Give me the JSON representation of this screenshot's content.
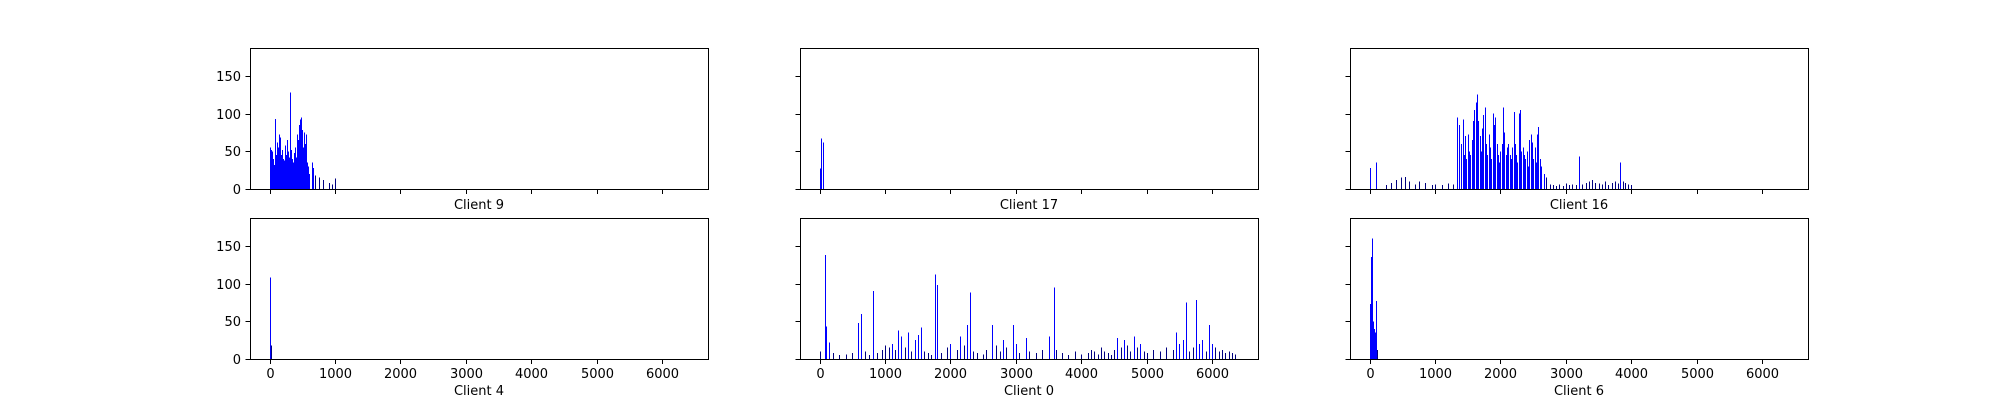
{
  "chart_data": {
    "type": "bar",
    "layout": {
      "rows": 2,
      "cols": 3,
      "sharex": true,
      "sharey": true
    },
    "xlim": [
      -300,
      6700
    ],
    "ylim": [
      0,
      187
    ],
    "xticks": [
      0,
      1000,
      2000,
      3000,
      4000,
      5000,
      6000
    ],
    "yticks": [
      0,
      50,
      100,
      150
    ],
    "colors": {
      "bar": "#0000ff",
      "dense": "#000080"
    },
    "panels": [
      {
        "title": "Client 9",
        "bars": [
          [
            5,
            55
          ],
          [
            20,
            52
          ],
          [
            35,
            50
          ],
          [
            50,
            40
          ],
          [
            62,
            32
          ],
          [
            75,
            93
          ],
          [
            90,
            45
          ],
          [
            105,
            38
          ],
          [
            120,
            62
          ],
          [
            135,
            55
          ],
          [
            150,
            72
          ],
          [
            165,
            68
          ],
          [
            180,
            45
          ],
          [
            195,
            52
          ],
          [
            210,
            40
          ],
          [
            225,
            38
          ],
          [
            240,
            58
          ],
          [
            255,
            45
          ],
          [
            270,
            65
          ],
          [
            285,
            50
          ],
          [
            300,
            42
          ],
          [
            318,
            128
          ],
          [
            330,
            52
          ],
          [
            345,
            40
          ],
          [
            360,
            35
          ],
          [
            375,
            48
          ],
          [
            390,
            55
          ],
          [
            405,
            42
          ],
          [
            420,
            72
          ],
          [
            435,
            65
          ],
          [
            450,
            85
          ],
          [
            465,
            92
          ],
          [
            478,
            95
          ],
          [
            490,
            78
          ],
          [
            505,
            55
          ],
          [
            520,
            75
          ],
          [
            535,
            60
          ],
          [
            550,
            72
          ],
          [
            565,
            35
          ],
          [
            580,
            30
          ],
          [
            600,
            20
          ],
          [
            640,
            35
          ],
          [
            670,
            28
          ],
          [
            700,
            18
          ],
          [
            760,
            15
          ],
          [
            820,
            12
          ],
          [
            900,
            8
          ],
          [
            950,
            6
          ],
          [
            1000,
            14
          ]
        ]
      },
      {
        "title": "Client 17",
        "bars": [
          [
            0,
            27
          ],
          [
            15,
            67
          ],
          [
            45,
            62
          ]
        ]
      },
      {
        "title": "Client 16",
        "bars": [
          [
            0,
            28
          ],
          [
            100,
            35
          ],
          [
            250,
            5
          ],
          [
            320,
            8
          ],
          [
            400,
            12
          ],
          [
            480,
            15
          ],
          [
            540,
            16
          ],
          [
            600,
            10
          ],
          [
            700,
            6
          ],
          [
            760,
            10
          ],
          [
            850,
            8
          ],
          [
            950,
            5
          ],
          [
            1000,
            6
          ],
          [
            1100,
            5
          ],
          [
            1200,
            7
          ],
          [
            1280,
            6
          ],
          [
            1330,
            95
          ],
          [
            1360,
            85
          ],
          [
            1390,
            60
          ],
          [
            1420,
            92
          ],
          [
            1440,
            45
          ],
          [
            1460,
            70
          ],
          [
            1480,
            40
          ],
          [
            1500,
            72
          ],
          [
            1520,
            50
          ],
          [
            1540,
            45
          ],
          [
            1560,
            65
          ],
          [
            1580,
            90
          ],
          [
            1600,
            105
          ],
          [
            1620,
            115
          ],
          [
            1640,
            125
          ],
          [
            1660,
            90
          ],
          [
            1680,
            70
          ],
          [
            1700,
            50
          ],
          [
            1720,
            80
          ],
          [
            1740,
            98
          ],
          [
            1760,
            108
          ],
          [
            1780,
            60
          ],
          [
            1800,
            45
          ],
          [
            1820,
            72
          ],
          [
            1840,
            55
          ],
          [
            1860,
            40
          ],
          [
            1880,
            100
          ],
          [
            1900,
            85
          ],
          [
            1920,
            95
          ],
          [
            1940,
            60
          ],
          [
            1960,
            45
          ],
          [
            1980,
            35
          ],
          [
            2000,
            50
          ],
          [
            2020,
            60
          ],
          [
            2040,
            108
          ],
          [
            2060,
            75
          ],
          [
            2080,
            45
          ],
          [
            2100,
            55
          ],
          [
            2120,
            60
          ],
          [
            2140,
            45
          ],
          [
            2160,
            40
          ],
          [
            2180,
            55
          ],
          [
            2200,
            102
          ],
          [
            2220,
            60
          ],
          [
            2240,
            45
          ],
          [
            2260,
            35
          ],
          [
            2280,
            100
          ],
          [
            2300,
            105
          ],
          [
            2320,
            50
          ],
          [
            2340,
            55
          ],
          [
            2360,
            45
          ],
          [
            2380,
            40
          ],
          [
            2400,
            50
          ],
          [
            2420,
            30
          ],
          [
            2440,
            65
          ],
          [
            2460,
            72
          ],
          [
            2480,
            62
          ],
          [
            2500,
            40
          ],
          [
            2520,
            55
          ],
          [
            2540,
            35
          ],
          [
            2560,
            72
          ],
          [
            2580,
            82
          ],
          [
            2600,
            40
          ],
          [
            2620,
            30
          ],
          [
            2660,
            20
          ],
          [
            2700,
            15
          ],
          [
            2750,
            6
          ],
          [
            2800,
            5
          ],
          [
            2850,
            4
          ],
          [
            2900,
            6
          ],
          [
            2950,
            4
          ],
          [
            3000,
            7
          ],
          [
            3050,
            5
          ],
          [
            3100,
            6
          ],
          [
            3150,
            5
          ],
          [
            3200,
            43
          ],
          [
            3250,
            6
          ],
          [
            3300,
            8
          ],
          [
            3350,
            10
          ],
          [
            3400,
            12
          ],
          [
            3450,
            8
          ],
          [
            3500,
            7
          ],
          [
            3550,
            6
          ],
          [
            3600,
            10
          ],
          [
            3650,
            5
          ],
          [
            3700,
            8
          ],
          [
            3750,
            10
          ],
          [
            3800,
            7
          ],
          [
            3830,
            35
          ],
          [
            3870,
            10
          ],
          [
            3900,
            8
          ],
          [
            3950,
            6
          ],
          [
            4000,
            5
          ]
        ]
      },
      {
        "title": "Client 4",
        "bars": [
          [
            0,
            108
          ],
          [
            10,
            36
          ],
          [
            20,
            18
          ]
        ]
      },
      {
        "title": "Client 0",
        "bars": [
          [
            0,
            10
          ],
          [
            75,
            138
          ],
          [
            100,
            43
          ],
          [
            150,
            22
          ],
          [
            200,
            8
          ],
          [
            300,
            5
          ],
          [
            400,
            6
          ],
          [
            500,
            8
          ],
          [
            580,
            48
          ],
          [
            630,
            60
          ],
          [
            700,
            10
          ],
          [
            760,
            5
          ],
          [
            820,
            90
          ],
          [
            880,
            8
          ],
          [
            950,
            12
          ],
          [
            1000,
            18
          ],
          [
            1060,
            15
          ],
          [
            1100,
            20
          ],
          [
            1150,
            12
          ],
          [
            1200,
            38
          ],
          [
            1250,
            30
          ],
          [
            1300,
            15
          ],
          [
            1350,
            35
          ],
          [
            1400,
            10
          ],
          [
            1450,
            25
          ],
          [
            1500,
            32
          ],
          [
            1550,
            42
          ],
          [
            1600,
            10
          ],
          [
            1650,
            8
          ],
          [
            1700,
            5
          ],
          [
            1760,
            112
          ],
          [
            1790,
            98
          ],
          [
            1850,
            8
          ],
          [
            1950,
            15
          ],
          [
            2000,
            20
          ],
          [
            2100,
            12
          ],
          [
            2150,
            30
          ],
          [
            2200,
            18
          ],
          [
            2250,
            45
          ],
          [
            2300,
            88
          ],
          [
            2350,
            10
          ],
          [
            2400,
            8
          ],
          [
            2500,
            6
          ],
          [
            2550,
            12
          ],
          [
            2630,
            45
          ],
          [
            2700,
            18
          ],
          [
            2750,
            10
          ],
          [
            2800,
            25
          ],
          [
            2850,
            15
          ],
          [
            2950,
            45
          ],
          [
            3000,
            20
          ],
          [
            3050,
            8
          ],
          [
            3150,
            28
          ],
          [
            3200,
            10
          ],
          [
            3300,
            8
          ],
          [
            3400,
            12
          ],
          [
            3500,
            30
          ],
          [
            3580,
            95
          ],
          [
            3620,
            12
          ],
          [
            3700,
            8
          ],
          [
            3800,
            5
          ],
          [
            3900,
            10
          ],
          [
            4000,
            6
          ],
          [
            4100,
            8
          ],
          [
            4150,
            12
          ],
          [
            4200,
            10
          ],
          [
            4250,
            6
          ],
          [
            4300,
            15
          ],
          [
            4350,
            10
          ],
          [
            4400,
            8
          ],
          [
            4450,
            5
          ],
          [
            4500,
            12
          ],
          [
            4550,
            28
          ],
          [
            4600,
            15
          ],
          [
            4650,
            25
          ],
          [
            4700,
            18
          ],
          [
            4750,
            10
          ],
          [
            4800,
            30
          ],
          [
            4850,
            15
          ],
          [
            4900,
            20
          ],
          [
            4950,
            10
          ],
          [
            5000,
            8
          ],
          [
            5100,
            12
          ],
          [
            5200,
            10
          ],
          [
            5300,
            15
          ],
          [
            5400,
            12
          ],
          [
            5450,
            35
          ],
          [
            5500,
            20
          ],
          [
            5550,
            25
          ],
          [
            5600,
            75
          ],
          [
            5650,
            10
          ],
          [
            5700,
            15
          ],
          [
            5750,
            78
          ],
          [
            5800,
            20
          ],
          [
            5850,
            25
          ],
          [
            5900,
            10
          ],
          [
            5950,
            45
          ],
          [
            6000,
            20
          ],
          [
            6050,
            15
          ],
          [
            6100,
            10
          ],
          [
            6150,
            12
          ],
          [
            6200,
            8
          ],
          [
            6250,
            10
          ],
          [
            6300,
            8
          ],
          [
            6350,
            6
          ]
        ]
      },
      {
        "title": "Client 6",
        "bars": [
          [
            0,
            73
          ],
          [
            15,
            135
          ],
          [
            30,
            160
          ],
          [
            45,
            50
          ],
          [
            60,
            40
          ],
          [
            75,
            35
          ],
          [
            90,
            77
          ],
          [
            105,
            22
          ],
          [
            120,
            12
          ]
        ]
      }
    ]
  }
}
